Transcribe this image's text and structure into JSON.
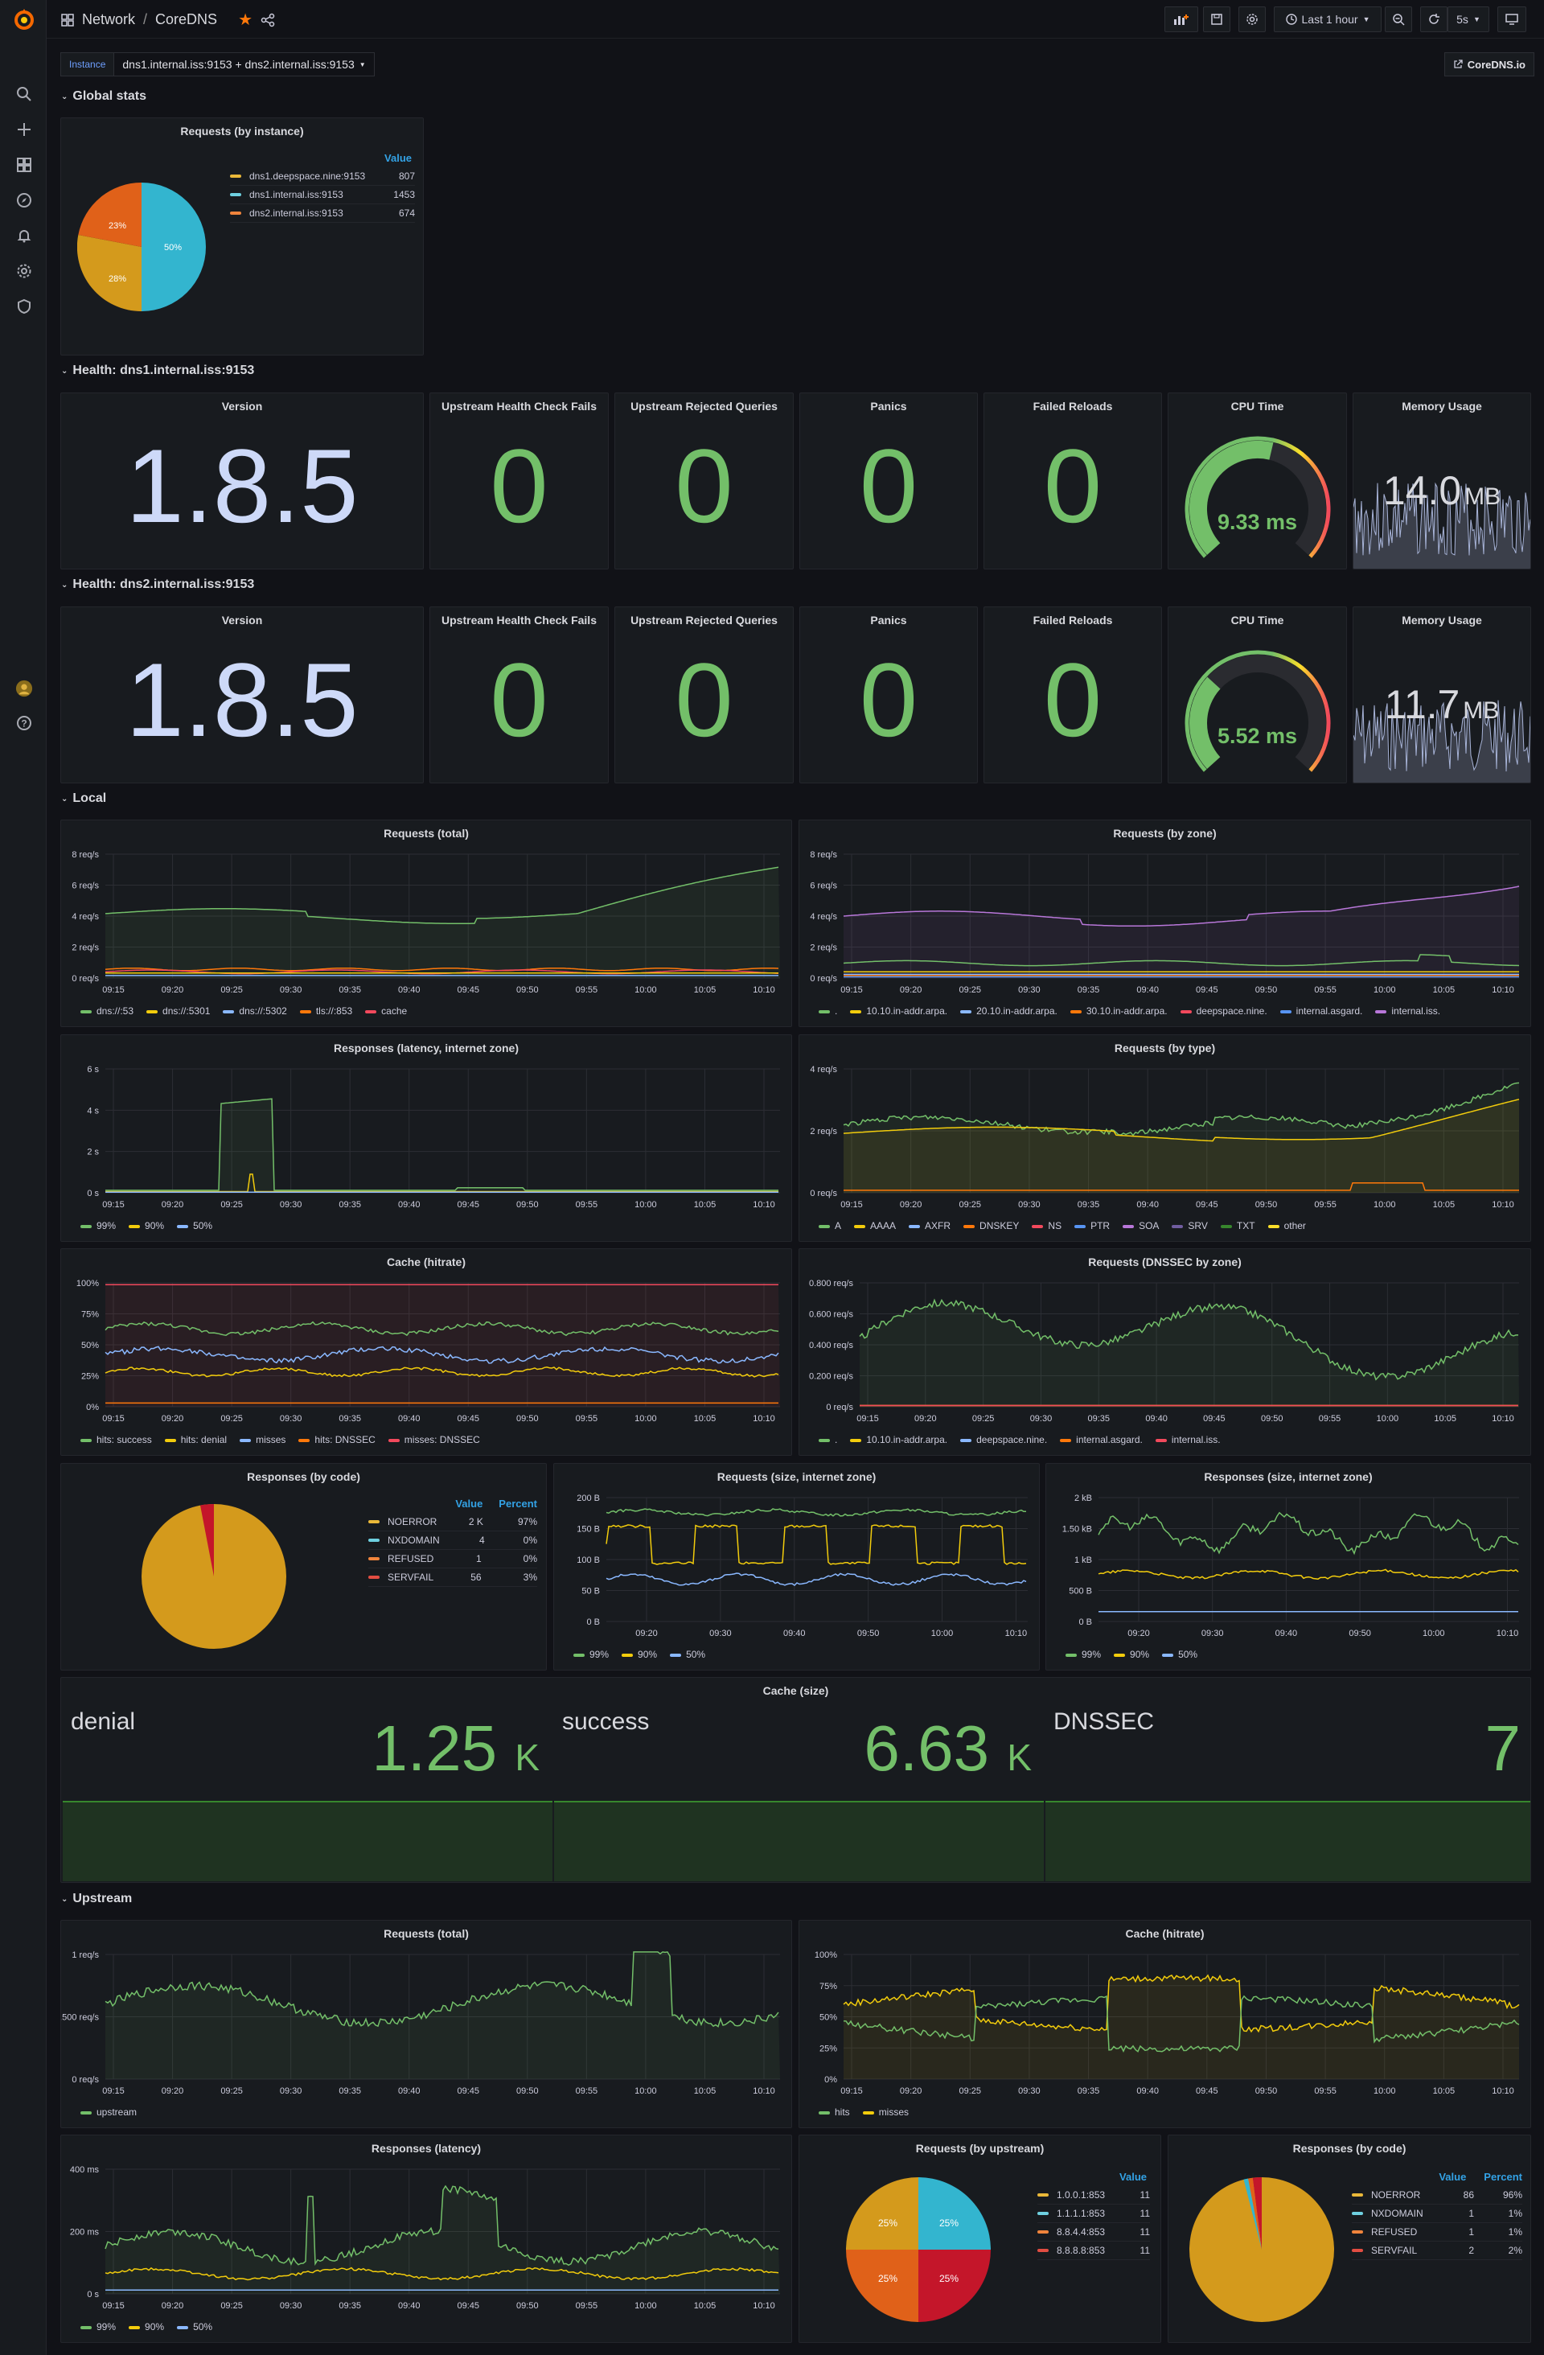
{
  "topbar": {
    "breadcrumb_folder": "Network",
    "breadcrumb_sep": "/",
    "dashboard_title": "CoreDNS",
    "time_range": "Last 1 hour",
    "refresh": "5s"
  },
  "variables": {
    "label": "Instance",
    "value": "dns1.internal.iss:9153 + dns2.internal.iss:9153"
  },
  "link": {
    "label": "CoreDNS.io"
  },
  "rows": {
    "global": "Global stats",
    "health1": "Health: dns1.internal.iss:9153",
    "health2": "Health: dns2.internal.iss:9153",
    "local": "Local",
    "upstream": "Upstream"
  },
  "global": {
    "requests_by_instance": {
      "title": "Requests (by instance)",
      "value_header": "Value",
      "items": [
        {
          "name": "dns1.deepspace.nine:9153",
          "value": "807",
          "color": "#eab839"
        },
        {
          "name": "dns1.internal.iss:9153",
          "value": "1453",
          "color": "#6ed0e0"
        },
        {
          "name": "dns2.internal.iss:9153",
          "value": "674",
          "color": "#ef843c"
        }
      ],
      "slice_labels": [
        "50%",
        "28%",
        "23%"
      ]
    }
  },
  "health1": {
    "version": {
      "title": "Version",
      "value": "1.8.5"
    },
    "hc_fails": {
      "title": "Upstream Health Check Fails",
      "value": "0"
    },
    "rejected": {
      "title": "Upstream Rejected Queries",
      "value": "0"
    },
    "panics": {
      "title": "Panics",
      "value": "0"
    },
    "reloads": {
      "title": "Failed Reloads",
      "value": "0"
    },
    "cpu": {
      "title": "CPU Time",
      "value": "9.33 ms",
      "fraction": 0.55
    },
    "mem": {
      "title": "Memory Usage",
      "value": "14.0",
      "unit": "MB"
    }
  },
  "health2": {
    "version": {
      "title": "Version",
      "value": "1.8.5"
    },
    "hc_fails": {
      "title": "Upstream Health Check Fails",
      "value": "0"
    },
    "rejected": {
      "title": "Upstream Rejected Queries",
      "value": "0"
    },
    "panics": {
      "title": "Panics",
      "value": "0"
    },
    "reloads": {
      "title": "Failed Reloads",
      "value": "0"
    },
    "cpu": {
      "title": "CPU Time",
      "value": "5.52 ms",
      "fraction": 0.32
    },
    "mem": {
      "title": "Memory Usage",
      "value": "11.7",
      "unit": "MB"
    }
  },
  "local": {
    "req_total": {
      "title": "Requests (total)",
      "yticks": [
        "8 req/s",
        "6 req/s",
        "4 req/s",
        "2 req/s",
        "0 req/s"
      ],
      "legend": [
        {
          "name": "dns://:53",
          "color": "#73bf69"
        },
        {
          "name": "dns://:5301",
          "color": "#f2cc0c"
        },
        {
          "name": "dns://:5302",
          "color": "#8ab8ff"
        },
        {
          "name": "tls://:853",
          "color": "#ff780a"
        },
        {
          "name": "cache",
          "color": "#f2495c"
        }
      ]
    },
    "req_zone": {
      "title": "Requests (by zone)",
      "yticks": [
        "8 req/s",
        "6 req/s",
        "4 req/s",
        "2 req/s",
        "0 req/s"
      ],
      "legend": [
        {
          "name": ".",
          "color": "#73bf69"
        },
        {
          "name": "10.10.in-addr.arpa.",
          "color": "#f2cc0c"
        },
        {
          "name": "20.10.in-addr.arpa.",
          "color": "#8ab8ff"
        },
        {
          "name": "30.10.in-addr.arpa.",
          "color": "#ff780a"
        },
        {
          "name": "deepspace.nine.",
          "color": "#f2495c"
        },
        {
          "name": "internal.asgard.",
          "color": "#5794f2"
        },
        {
          "name": "internal.iss.",
          "color": "#b877d9"
        }
      ]
    },
    "latency": {
      "title": "Responses (latency, internet zone)",
      "yticks": [
        "6 s",
        "4 s",
        "2 s",
        "0 s"
      ],
      "legend": [
        {
          "name": "99%",
          "color": "#73bf69"
        },
        {
          "name": "90%",
          "color": "#f2cc0c"
        },
        {
          "name": "50%",
          "color": "#8ab8ff"
        }
      ]
    },
    "req_type": {
      "title": "Requests (by type)",
      "yticks": [
        "4 req/s",
        "2 req/s",
        "0 req/s"
      ],
      "legend": [
        {
          "name": "A",
          "color": "#73bf69"
        },
        {
          "name": "AAAA",
          "color": "#f2cc0c"
        },
        {
          "name": "AXFR",
          "color": "#8ab8ff"
        },
        {
          "name": "DNSKEY",
          "color": "#ff780a"
        },
        {
          "name": "NS",
          "color": "#f2495c"
        },
        {
          "name": "PTR",
          "color": "#5794f2"
        },
        {
          "name": "SOA",
          "color": "#b877d9"
        },
        {
          "name": "SRV",
          "color": "#705da0"
        },
        {
          "name": "TXT",
          "color": "#37872d"
        },
        {
          "name": "other",
          "color": "#fade2a"
        }
      ]
    },
    "cache_hit": {
      "title": "Cache (hitrate)",
      "yticks": [
        "100%",
        "75%",
        "50%",
        "25%",
        "0%"
      ],
      "legend": [
        {
          "name": "hits: success",
          "color": "#73bf69"
        },
        {
          "name": "hits: denial",
          "color": "#f2cc0c"
        },
        {
          "name": "misses",
          "color": "#8ab8ff"
        },
        {
          "name": "hits: DNSSEC",
          "color": "#ff780a"
        },
        {
          "name": "misses: DNSSEC",
          "color": "#f2495c"
        }
      ]
    },
    "dnssec": {
      "title": "Requests (DNSSEC by zone)",
      "yticks": [
        "0.800 req/s",
        "0.600 req/s",
        "0.400 req/s",
        "0.200 req/s",
        "0 req/s"
      ],
      "legend": [
        {
          "name": ".",
          "color": "#73bf69"
        },
        {
          "name": "10.10.in-addr.arpa.",
          "color": "#f2cc0c"
        },
        {
          "name": "deepspace.nine.",
          "color": "#8ab8ff"
        },
        {
          "name": "internal.asgard.",
          "color": "#ff780a"
        },
        {
          "name": "internal.iss.",
          "color": "#f2495c"
        }
      ]
    },
    "resp_code": {
      "title": "Responses (by code)",
      "value_header": "Value",
      "percent_header": "Percent",
      "items": [
        {
          "name": "NOERROR",
          "value": "2 K",
          "pct": "97%",
          "color": "#eab839"
        },
        {
          "name": "NXDOMAIN",
          "value": "4",
          "pct": "0%",
          "color": "#6ed0e0"
        },
        {
          "name": "REFUSED",
          "value": "1",
          "pct": "0%",
          "color": "#ef843c"
        },
        {
          "name": "SERVFAIL",
          "value": "56",
          "pct": "3%",
          "color": "#e24d42"
        }
      ]
    },
    "req_size": {
      "title": "Requests (size, internet zone)",
      "yticks": [
        "200 B",
        "150 B",
        "100 B",
        "50 B",
        "0 B"
      ],
      "xticks": [
        "09:20",
        "09:30",
        "09:40",
        "09:50",
        "10:00",
        "10:10"
      ],
      "legend": [
        {
          "name": "99%",
          "color": "#73bf69"
        },
        {
          "name": "90%",
          "color": "#f2cc0c"
        },
        {
          "name": "50%",
          "color": "#8ab8ff"
        }
      ]
    },
    "resp_size": {
      "title": "Responses (size, internet zone)",
      "yticks": [
        "2 kB",
        "1.50 kB",
        "1 kB",
        "500 B",
        "0 B"
      ],
      "xticks": [
        "09:20",
        "09:30",
        "09:40",
        "09:50",
        "10:00",
        "10:10"
      ],
      "legend": [
        {
          "name": "99%",
          "color": "#73bf69"
        },
        {
          "name": "90%",
          "color": "#f2cc0c"
        },
        {
          "name": "50%",
          "color": "#8ab8ff"
        }
      ]
    },
    "cache_size": {
      "title": "Cache (size)",
      "items": [
        {
          "name": "denial",
          "value": "1.25",
          "unit": "K"
        },
        {
          "name": "success",
          "value": "6.63",
          "unit": "K"
        },
        {
          "name": "DNSSEC",
          "value": "7",
          "unit": ""
        }
      ]
    }
  },
  "upstream": {
    "req_total": {
      "title": "Requests (total)",
      "yticks": [
        "1 req/s",
        "0.500 req/s",
        "0 req/s"
      ],
      "legend": [
        {
          "name": "upstream",
          "color": "#73bf69"
        }
      ]
    },
    "cache_hit": {
      "title": "Cache (hitrate)",
      "yticks": [
        "100%",
        "75%",
        "50%",
        "25%",
        "0%"
      ],
      "legend": [
        {
          "name": "hits",
          "color": "#73bf69"
        },
        {
          "name": "misses",
          "color": "#f2cc0c"
        }
      ]
    },
    "latency": {
      "title": "Responses (latency)",
      "yticks": [
        "400 ms",
        "200 ms",
        "0 s"
      ],
      "legend": [
        {
          "name": "99%",
          "color": "#73bf69"
        },
        {
          "name": "90%",
          "color": "#f2cc0c"
        },
        {
          "name": "50%",
          "color": "#8ab8ff"
        }
      ]
    },
    "req_upstream": {
      "title": "Requests (by upstream)",
      "value_header": "Value",
      "items": [
        {
          "name": "1.0.0.1:853",
          "value": "11",
          "color": "#eab839"
        },
        {
          "name": "1.1.1.1:853",
          "value": "11",
          "color": "#6ed0e0"
        },
        {
          "name": "8.8.4.4:853",
          "value": "11",
          "color": "#ef843c"
        },
        {
          "name": "8.8.8.8:853",
          "value": "11",
          "color": "#e24d42"
        }
      ],
      "slice_labels": [
        "25%",
        "25%",
        "25%",
        "25%"
      ]
    },
    "resp_code": {
      "title": "Responses (by code)",
      "value_header": "Value",
      "percent_header": "Percent",
      "items": [
        {
          "name": "NOERROR",
          "value": "86",
          "pct": "96%",
          "color": "#eab839"
        },
        {
          "name": "NXDOMAIN",
          "value": "1",
          "pct": "1%",
          "color": "#6ed0e0"
        },
        {
          "name": "REFUSED",
          "value": "1",
          "pct": "1%",
          "color": "#ef843c"
        },
        {
          "name": "SERVFAIL",
          "value": "2",
          "pct": "2%",
          "color": "#e24d42"
        }
      ]
    }
  },
  "time_axis": [
    "09:15",
    "09:20",
    "09:25",
    "09:30",
    "09:35",
    "09:40",
    "09:45",
    "09:50",
    "09:55",
    "10:00",
    "10:05",
    "10:10"
  ]
}
